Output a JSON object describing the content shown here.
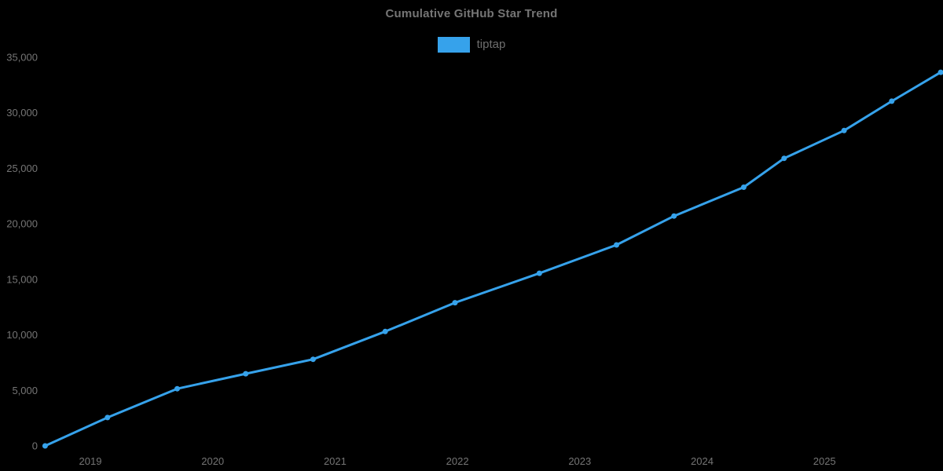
{
  "title": "Cumulative GitHub Star Trend",
  "legend": {
    "label": "tiptap",
    "swatch_color": "#36a2eb",
    "position": "top"
  },
  "colors": {
    "background": "#000000",
    "line": "#36a2eb",
    "marker": "#36a2eb",
    "title_text": "#757575",
    "legend_text": "#6e6e6e",
    "axis_text": "#757575"
  },
  "chart_data": {
    "type": "line",
    "title": "Cumulative GitHub Star Trend",
    "xlabel": "",
    "ylabel": "",
    "grid": false,
    "legend_position": "top",
    "marker": "circle",
    "xlim": [
      2018.55,
      2026.05
    ],
    "ylim": [
      0,
      35000
    ],
    "x_ticks": [
      "2019",
      "2020",
      "2021",
      "2022",
      "2023",
      "2024",
      "2025"
    ],
    "y_ticks": [
      0,
      5000,
      10000,
      15000,
      20000,
      25000,
      30000,
      35000
    ],
    "series": [
      {
        "name": "tiptap",
        "points": [
          {
            "x": 2018.63,
            "date": "2018-08",
            "stars": 0
          },
          {
            "x": 2019.14,
            "date": "2019-02",
            "stars": 2550
          },
          {
            "x": 2019.71,
            "date": "2019-09",
            "stars": 5150
          },
          {
            "x": 2020.27,
            "date": "2020-04",
            "stars": 6500
          },
          {
            "x": 2020.82,
            "date": "2020-11",
            "stars": 7800
          },
          {
            "x": 2021.41,
            "date": "2021-06",
            "stars": 10300
          },
          {
            "x": 2021.98,
            "date": "2021-12",
            "stars": 12900
          },
          {
            "x": 2022.67,
            "date": "2022-09",
            "stars": 15550
          },
          {
            "x": 2023.3,
            "date": "2023-04",
            "stars": 18100
          },
          {
            "x": 2023.77,
            "date": "2023-10",
            "stars": 20700
          },
          {
            "x": 2024.34,
            "date": "2024-05",
            "stars": 23300
          },
          {
            "x": 2024.67,
            "date": "2024-09",
            "stars": 25900
          },
          {
            "x": 2025.16,
            "date": "2025-03",
            "stars": 28400
          },
          {
            "x": 2025.55,
            "date": "2025-07",
            "stars": 31050
          },
          {
            "x": 2025.95,
            "date": "2025-12",
            "stars": 33650
          }
        ]
      }
    ]
  }
}
